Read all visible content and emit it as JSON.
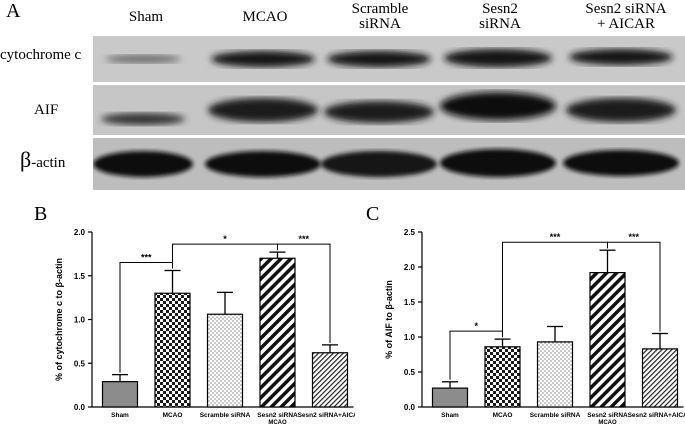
{
  "panels": {
    "a": "A",
    "b": "B",
    "c": "C"
  },
  "blot": {
    "lanes": [
      {
        "line1": "Sham",
        "line2": ""
      },
      {
        "line1": "MCAO",
        "line2": ""
      },
      {
        "line1": "Scramble",
        "line2": "siRNA"
      },
      {
        "line1": "Sesn2",
        "line2": "siRNA"
      },
      {
        "line1": "Sesn2 siRNA",
        "line2": "+ AICAR"
      }
    ],
    "rows": [
      {
        "label": "cytochrome c",
        "big": "",
        "rest": ""
      },
      {
        "label": "AIF",
        "big": "",
        "rest": ""
      },
      {
        "label": "",
        "big": "β",
        "rest": "-actin"
      }
    ]
  },
  "chart_data": [
    {
      "type": "bar",
      "ylabel": "% of cytochrome c to β-actin",
      "ylim": [
        0,
        2.0
      ],
      "yticks": [
        "0.0",
        "0.5",
        "1.0",
        "1.5",
        "2.0"
      ],
      "categories": [
        "Sham",
        "MCAO",
        "Scramble siRNA",
        "Sesn2 siRNA",
        "Sesn2 siRNA+AICAR"
      ],
      "sublabel": {
        "category_index": 3,
        "text": "MCAO"
      },
      "values": [
        0.29,
        1.3,
        1.06,
        1.7,
        0.62
      ],
      "errors": [
        0.08,
        0.26,
        0.25,
        0.07,
        0.09
      ],
      "significance": [
        {
          "from": 0,
          "to": 1,
          "label": "***"
        },
        {
          "from": 1,
          "to": 3,
          "label": "*"
        },
        {
          "from": 3,
          "to": 4,
          "label": "***"
        }
      ]
    },
    {
      "type": "bar",
      "ylabel": "% of AIF to β-actin",
      "ylim": [
        0,
        2.5
      ],
      "yticks": [
        "0.0",
        "0.5",
        "1.0",
        "1.5",
        "2.0",
        "2.5"
      ],
      "categories": [
        "Sham",
        "MCAO",
        "Scramble siRNA",
        "Sesn2 siRNA",
        "Sesn2 siRNA+AICAR"
      ],
      "sublabel": {
        "category_index": 3,
        "text": "MCAO"
      },
      "values": [
        0.27,
        0.86,
        0.93,
        1.92,
        0.83
      ],
      "errors": [
        0.09,
        0.11,
        0.22,
        0.32,
        0.22
      ],
      "significance": [
        {
          "from": 0,
          "to": 1,
          "label": "*"
        },
        {
          "from": 1,
          "to": 3,
          "label": "***"
        },
        {
          "from": 3,
          "to": 4,
          "label": "***"
        }
      ]
    }
  ]
}
